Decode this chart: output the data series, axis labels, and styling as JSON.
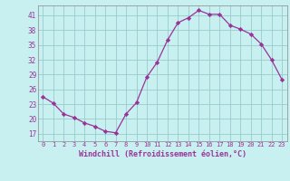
{
  "x": [
    0,
    1,
    2,
    3,
    4,
    5,
    6,
    7,
    8,
    9,
    10,
    11,
    12,
    13,
    14,
    15,
    16,
    17,
    18,
    19,
    20,
    21,
    22,
    23
  ],
  "y": [
    24.5,
    23.2,
    21.0,
    20.3,
    19.2,
    18.5,
    17.5,
    17.2,
    21.0,
    23.3,
    28.5,
    31.5,
    36.0,
    39.5,
    40.5,
    42.0,
    41.2,
    41.2,
    39.0,
    38.2,
    37.2,
    35.2,
    32.0,
    28.0
  ],
  "line_color": "#993399",
  "marker_color": "#993399",
  "bg_color": "#c8f0f0",
  "grid_color": "#99cccc",
  "axis_color": "#993399",
  "xlabel": "Windchill (Refroidissement éolien,°C)",
  "title": "",
  "xlim": [
    -0.5,
    23.5
  ],
  "ylim": [
    15.5,
    43
  ],
  "yticks": [
    17,
    20,
    23,
    26,
    29,
    32,
    35,
    38,
    41
  ],
  "xticks": [
    0,
    1,
    2,
    3,
    4,
    5,
    6,
    7,
    8,
    9,
    10,
    11,
    12,
    13,
    14,
    15,
    16,
    17,
    18,
    19,
    20,
    21,
    22,
    23
  ]
}
